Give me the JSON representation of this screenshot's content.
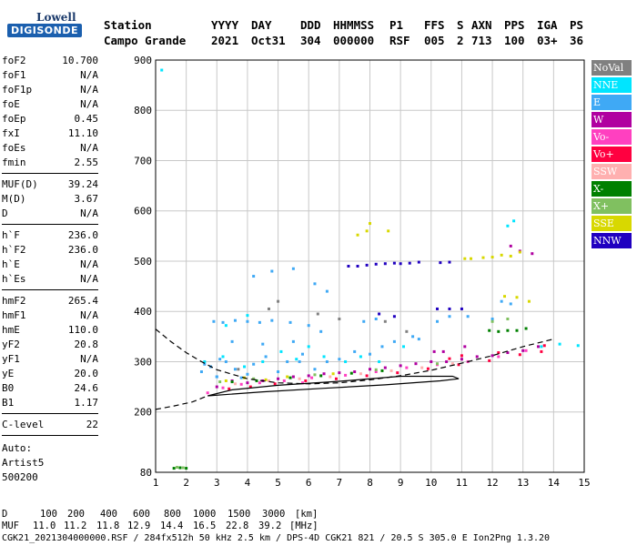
{
  "logo": {
    "brand": "Lowell",
    "product": "DIGISONDE"
  },
  "header": {
    "labels": [
      "Station",
      "YYYY",
      "DAY",
      "DDD",
      "HHMMSS",
      "P1",
      "FFS",
      "S",
      "AXN",
      "PPS",
      "IGA",
      "PS"
    ],
    "values": [
      "Campo Grande",
      "2021",
      "Oct31",
      "304",
      "000000",
      "RSF",
      "005",
      "2",
      "713",
      "100",
      "03+",
      "36"
    ]
  },
  "params": [
    {
      "name": "foF2",
      "value": "10.700"
    },
    {
      "name": "foF1",
      "value": "N/A"
    },
    {
      "name": "foF1p",
      "value": "N/A"
    },
    {
      "name": "foE",
      "value": "N/A"
    },
    {
      "name": "foEp",
      "value": "0.45"
    },
    {
      "name": "fxI",
      "value": "11.10"
    },
    {
      "name": "foEs",
      "value": "N/A"
    },
    {
      "name": "fmin",
      "value": "2.55"
    },
    {
      "name": "MUF(D)",
      "value": "39.24"
    },
    {
      "name": "M(D)",
      "value": "3.67"
    },
    {
      "name": "D",
      "value": "N/A"
    },
    {
      "name": "h`F",
      "value": "236.0"
    },
    {
      "name": "h`F2",
      "value": "236.0"
    },
    {
      "name": "h`E",
      "value": "N/A"
    },
    {
      "name": "h`Es",
      "value": "N/A"
    },
    {
      "name": "hmF2",
      "value": "265.4"
    },
    {
      "name": "hmF1",
      "value": "N/A"
    },
    {
      "name": "hmE",
      "value": "110.0"
    },
    {
      "name": "yF2",
      "value": "20.8"
    },
    {
      "name": "yF1",
      "value": "N/A"
    },
    {
      "name": "yE",
      "value": "20.0"
    },
    {
      "name": "B0",
      "value": "24.6"
    },
    {
      "name": "B1",
      "value": "1.17"
    },
    {
      "name": "C-level",
      "value": "22"
    }
  ],
  "auto": {
    "label": "Auto:",
    "software": "Artist5",
    "version": "500200"
  },
  "legend": [
    {
      "label": "NoVal",
      "color": "#808080"
    },
    {
      "label": "NNE",
      "color": "#00e5ff"
    },
    {
      "label": "E",
      "color": "#3fa9f5"
    },
    {
      "label": "W",
      "color": "#b000a0"
    },
    {
      "label": "Vo-",
      "color": "#ff40c0"
    },
    {
      "label": "Vo+",
      "color": "#ff0040"
    },
    {
      "label": "SSW",
      "color": "#ffb0b0"
    },
    {
      "label": "X-",
      "color": "#008000"
    },
    {
      "label": "X+",
      "color": "#80c060"
    },
    {
      "label": "SSE",
      "color": "#d8d800"
    },
    {
      "label": "NNW",
      "color": "#2000c0"
    }
  ],
  "footer": {
    "d_label": "D",
    "d_values": [
      "100",
      "200",
      "400",
      "600",
      "800",
      "1000",
      "1500",
      "3000",
      "[km]"
    ],
    "muf_label": "MUF",
    "muf_values": [
      "11.0",
      "11.2",
      "11.8",
      "12.9",
      "14.4",
      "16.5",
      "22.8",
      "39.2",
      "[MHz]"
    ],
    "file_line": "CGK21_2021304000000.RSF / 284fx512h 50 kHz 2.5 km / DPS-4D CGK21 821 / 20.5 S 305.0 E Ion2Png 1.3.20"
  },
  "chart_data": {
    "type": "scatter",
    "title": "",
    "xlabel": "",
    "ylabel": "",
    "xlim": [
      1,
      15
    ],
    "ylim": [
      80,
      900
    ],
    "x_ticks": [
      1,
      2,
      3,
      4,
      5,
      6,
      7,
      8,
      9,
      10,
      11,
      12,
      13,
      14,
      15
    ],
    "y_ticks": [
      80,
      200,
      300,
      400,
      500,
      600,
      700,
      800,
      900
    ],
    "grid": true,
    "legend_position": "right",
    "profile_dashed": [
      [
        1.0,
        365
      ],
      [
        1.5,
        340
      ],
      [
        2.0,
        318
      ],
      [
        2.5,
        300
      ],
      [
        3.0,
        284
      ],
      [
        4.0,
        266
      ],
      [
        5.0,
        258
      ],
      [
        6.0,
        256
      ],
      [
        7.0,
        258
      ],
      [
        8.0,
        264
      ],
      [
        9.0,
        272
      ],
      [
        10.0,
        283
      ],
      [
        11.0,
        297
      ],
      [
        12.0,
        312
      ],
      [
        13.0,
        330
      ],
      [
        14.0,
        345
      ]
    ],
    "lower_dashed": [
      [
        1.0,
        205
      ],
      [
        1.6,
        212
      ],
      [
        2.2,
        220
      ],
      [
        2.7,
        232
      ]
    ],
    "trace_solid": [
      [
        2.7,
        232
      ],
      [
        3.5,
        244
      ],
      [
        5.0,
        253
      ],
      [
        7.0,
        261
      ],
      [
        9.0,
        271
      ],
      [
        10.7,
        271
      ],
      [
        10.9,
        266
      ],
      [
        10.3,
        262
      ],
      [
        8.5,
        254
      ],
      [
        6.5,
        247
      ],
      [
        4.5,
        240
      ],
      [
        2.7,
        232
      ]
    ],
    "series": [
      {
        "name": "E",
        "points": [
          [
            2.5,
            280
          ],
          [
            2.8,
            290
          ],
          [
            3.0,
            270
          ],
          [
            3.3,
            300
          ],
          [
            3.6,
            285
          ],
          [
            4.0,
            275
          ],
          [
            4.2,
            295
          ],
          [
            4.6,
            310
          ],
          [
            5.0,
            280
          ],
          [
            5.3,
            300
          ],
          [
            5.8,
            315
          ],
          [
            6.2,
            285
          ],
          [
            6.6,
            300
          ],
          [
            7.0,
            305
          ],
          [
            7.5,
            320
          ],
          [
            8.0,
            315
          ],
          [
            8.4,
            330
          ],
          [
            8.8,
            340
          ],
          [
            9.4,
            350
          ],
          [
            10.2,
            380
          ],
          [
            10.6,
            390
          ],
          [
            11.2,
            390
          ],
          [
            12.0,
            385
          ],
          [
            12.3,
            420
          ],
          [
            12.6,
            415
          ],
          [
            2.9,
            380
          ],
          [
            3.2,
            378
          ],
          [
            3.6,
            382
          ],
          [
            4.0,
            380
          ],
          [
            4.4,
            378
          ],
          [
            4.8,
            382
          ],
          [
            5.4,
            378
          ],
          [
            6.0,
            372
          ],
          [
            6.4,
            360
          ],
          [
            7.8,
            380
          ],
          [
            8.2,
            385
          ],
          [
            3.5,
            340
          ],
          [
            4.5,
            335
          ],
          [
            5.5,
            340
          ],
          [
            4.2,
            470
          ],
          [
            4.8,
            480
          ],
          [
            5.5,
            485
          ],
          [
            6.2,
            455
          ],
          [
            6.6,
            440
          ],
          [
            3.0,
            270
          ],
          [
            3.8,
            268
          ],
          [
            2.6,
            295
          ],
          [
            3.1,
            305
          ],
          [
            5.7,
            300
          ],
          [
            9.6,
            345
          ]
        ]
      },
      {
        "name": "NNE",
        "points": [
          [
            2.6,
            300
          ],
          [
            3.2,
            310
          ],
          [
            3.9,
            290
          ],
          [
            4.5,
            300
          ],
          [
            5.1,
            320
          ],
          [
            5.6,
            305
          ],
          [
            6.0,
            330
          ],
          [
            6.5,
            310
          ],
          [
            7.2,
            300
          ],
          [
            7.7,
            310
          ],
          [
            8.3,
            300
          ],
          [
            9.1,
            330
          ],
          [
            12.5,
            570
          ],
          [
            12.7,
            580
          ],
          [
            13.6,
            330
          ],
          [
            14.2,
            335
          ],
          [
            14.8,
            332
          ],
          [
            1.2,
            880
          ],
          [
            3.3,
            372
          ],
          [
            4.0,
            392
          ]
        ]
      },
      {
        "name": "W",
        "points": [
          [
            3.0,
            250
          ],
          [
            3.5,
            262
          ],
          [
            4.0,
            258
          ],
          [
            4.5,
            262
          ],
          [
            5.0,
            266
          ],
          [
            5.5,
            270
          ],
          [
            6.0,
            272
          ],
          [
            6.5,
            276
          ],
          [
            7.0,
            278
          ],
          [
            7.5,
            280
          ],
          [
            8.0,
            285
          ],
          [
            8.5,
            288
          ],
          [
            9.0,
            292
          ],
          [
            9.5,
            296
          ],
          [
            10.0,
            300
          ],
          [
            10.5,
            300
          ],
          [
            11.0,
            305
          ],
          [
            11.5,
            310
          ],
          [
            12.0,
            312
          ],
          [
            12.5,
            318
          ],
          [
            13.0,
            322
          ],
          [
            13.5,
            330
          ],
          [
            12.6,
            530
          ],
          [
            12.9,
            520
          ],
          [
            13.3,
            515
          ],
          [
            10.1,
            320
          ],
          [
            10.4,
            320
          ],
          [
            11.1,
            330
          ]
        ]
      },
      {
        "name": "Vo-",
        "points": [
          [
            3.2,
            248
          ],
          [
            3.8,
            255
          ],
          [
            4.4,
            258
          ],
          [
            5.2,
            262
          ],
          [
            6.1,
            268
          ],
          [
            7.2,
            273
          ],
          [
            8.2,
            280
          ],
          [
            9.2,
            288
          ],
          [
            10.2,
            294
          ],
          [
            11.2,
            300
          ],
          [
            12.2,
            310
          ],
          [
            13.1,
            322
          ],
          [
            2.7,
            238
          ],
          [
            5.8,
            258
          ]
        ]
      },
      {
        "name": "Vo+",
        "points": [
          [
            3.4,
            246
          ],
          [
            4.1,
            250
          ],
          [
            4.9,
            256
          ],
          [
            5.9,
            262
          ],
          [
            6.9,
            266
          ],
          [
            7.9,
            272
          ],
          [
            8.9,
            278
          ],
          [
            9.9,
            286
          ],
          [
            10.9,
            294
          ],
          [
            11.9,
            302
          ],
          [
            12.9,
            314
          ],
          [
            13.7,
            332
          ],
          [
            11.0,
            312
          ],
          [
            12.2,
            318
          ],
          [
            10.6,
            306
          ],
          [
            13.6,
            320
          ]
        ]
      },
      {
        "name": "SSW",
        "points": [
          [
            3.6,
            256
          ],
          [
            4.7,
            262
          ],
          [
            5.7,
            266
          ],
          [
            6.7,
            270
          ],
          [
            7.7,
            276
          ],
          [
            8.7,
            282
          ],
          [
            9.7,
            288
          ],
          [
            10.7,
            296
          ]
        ]
      },
      {
        "name": "X-",
        "points": [
          [
            1.6,
            88
          ],
          [
            1.8,
            89
          ],
          [
            2.0,
            88
          ],
          [
            3.5,
            260
          ],
          [
            4.3,
            262
          ],
          [
            5.4,
            268
          ],
          [
            6.4,
            272
          ],
          [
            7.4,
            277
          ],
          [
            8.4,
            282
          ],
          [
            11.9,
            362
          ],
          [
            12.2,
            360
          ],
          [
            12.5,
            362
          ],
          [
            12.8,
            362
          ],
          [
            13.1,
            366
          ]
        ]
      },
      {
        "name": "X+",
        "points": [
          [
            1.7,
            90
          ],
          [
            1.9,
            89
          ],
          [
            3.1,
            260
          ],
          [
            4.2,
            266
          ],
          [
            6.2,
            274
          ],
          [
            8.2,
            284
          ],
          [
            10.2,
            296
          ],
          [
            12.0,
            380
          ],
          [
            12.5,
            385
          ]
        ]
      },
      {
        "name": "SSE",
        "points": [
          [
            3.3,
            262
          ],
          [
            4.6,
            264
          ],
          [
            6.8,
            276
          ],
          [
            7.6,
            552
          ],
          [
            7.9,
            560
          ],
          [
            8.0,
            575
          ],
          [
            8.6,
            560
          ],
          [
            11.1,
            505
          ],
          [
            11.3,
            505
          ],
          [
            11.7,
            507
          ],
          [
            12.0,
            508
          ],
          [
            12.3,
            512
          ],
          [
            12.6,
            510
          ],
          [
            12.9,
            518
          ],
          [
            12.4,
            430
          ],
          [
            12.8,
            428
          ],
          [
            13.2,
            420
          ],
          [
            3.9,
            268
          ],
          [
            5.3,
            270
          ]
        ]
      },
      {
        "name": "NNW",
        "points": [
          [
            7.3,
            490
          ],
          [
            7.6,
            490
          ],
          [
            7.9,
            492
          ],
          [
            8.2,
            494
          ],
          [
            8.5,
            495
          ],
          [
            8.8,
            496
          ],
          [
            9.0,
            495
          ],
          [
            9.3,
            496
          ],
          [
            9.6,
            498
          ],
          [
            10.3,
            497
          ],
          [
            10.6,
            498
          ],
          [
            10.2,
            405
          ],
          [
            10.6,
            405
          ],
          [
            11.0,
            405
          ],
          [
            8.3,
            395
          ],
          [
            8.8,
            390
          ]
        ]
      },
      {
        "name": "NoVal",
        "points": [
          [
            4.7,
            405
          ],
          [
            5.0,
            420
          ],
          [
            6.3,
            395
          ],
          [
            7.0,
            385
          ],
          [
            8.5,
            380
          ],
          [
            9.2,
            360
          ],
          [
            3.7,
            285
          ]
        ]
      }
    ]
  }
}
